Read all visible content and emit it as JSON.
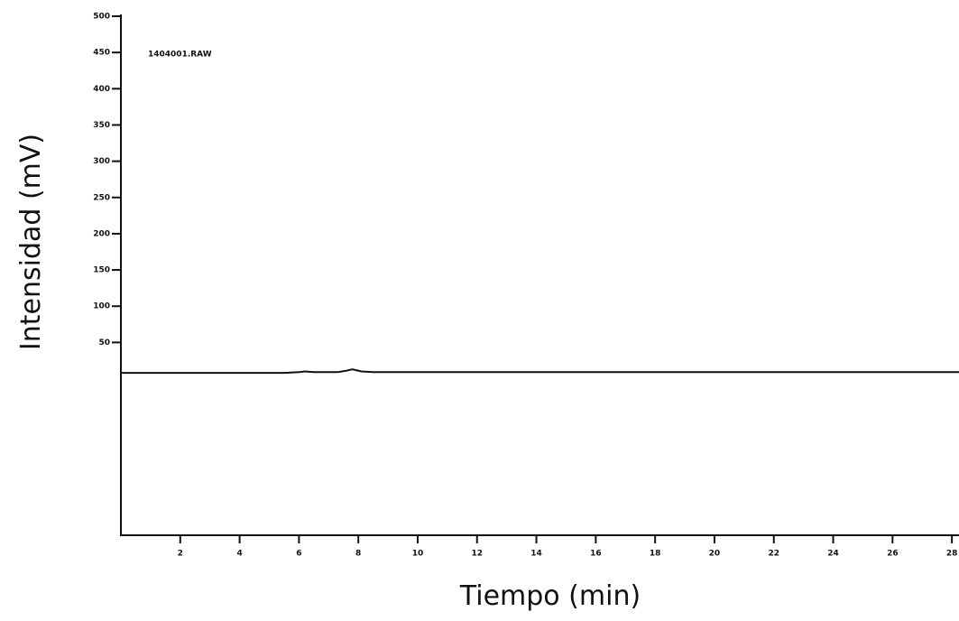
{
  "chart_data": {
    "type": "line",
    "annotation": "1404001.RAW",
    "x_label": "Tiempo (min)",
    "y_label": "Intensidad (mV)",
    "x": [
      0,
      5.5,
      6.0,
      6.2,
      6.5,
      7.3,
      7.6,
      7.8,
      8.1,
      8.5,
      28.3
    ],
    "series": [
      {
        "name": "1404001.RAW",
        "color": "#111111",
        "values": [
          8,
          8,
          9,
          10,
          9,
          9,
          11,
          13,
          10,
          9,
          9
        ]
      }
    ],
    "xlim": [
      0,
      28.3
    ],
    "xticks": [
      2,
      4,
      6,
      8,
      10,
      12,
      14,
      16,
      18,
      20,
      22,
      24,
      26,
      28
    ],
    "ylim": [
      -216,
      500
    ],
    "yticks": [
      50,
      100,
      150,
      200,
      250,
      300,
      350,
      400,
      450,
      500
    ]
  }
}
